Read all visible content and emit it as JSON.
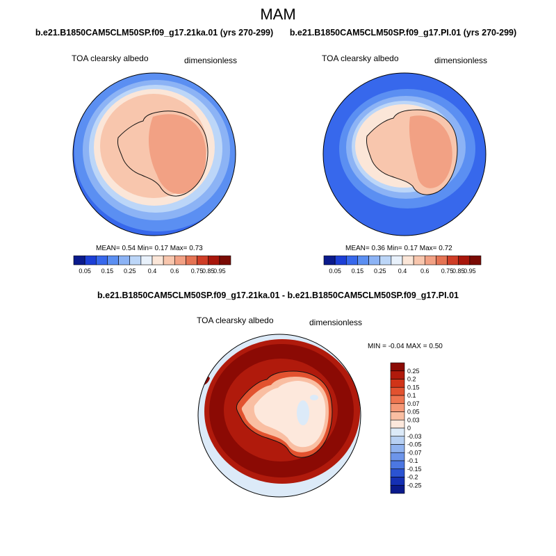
{
  "page": {
    "main_title": "MAM"
  },
  "chart_data": [
    {
      "type": "map",
      "title": "b.e21.B1850CAM5CLM50SP.f09_g17.21ka.01 (yrs 270-299)",
      "left_label": "TOA clearsky albedo",
      "right_label": "dimensionless",
      "stats": {
        "mean_label": "MEAN=",
        "mean": "0.54",
        "min_label": "Min=",
        "min": "0.17",
        "max_label": "Max=",
        "max": "0.73"
      },
      "colorbar": {
        "orientation": "horizontal",
        "tick_labels": [
          "0.05",
          "0.15",
          "0.25",
          "0.4",
          "0.6",
          "0.75",
          "0.85",
          "0.95"
        ],
        "colors": [
          "#0a1a8c",
          "#1c3fd6",
          "#3768ec",
          "#5b8ff2",
          "#8cb3f5",
          "#bcd6f8",
          "#e8f1fb",
          "#fbe6d8",
          "#f8c6ad",
          "#f2a184",
          "#e57353",
          "#cf3d26",
          "#a8160b",
          "#7a0b05"
        ]
      }
    },
    {
      "type": "map",
      "title": "b.e21.B1850CAM5CLM50SP.f09_g17.PI.01 (yrs 270-299)",
      "left_label": "TOA clearsky albedo",
      "right_label": "dimensionless",
      "stats": {
        "mean_label": "MEAN=",
        "mean": "0.36",
        "min_label": "Min=",
        "min": "0.17",
        "max_label": "Max=",
        "max": "0.72"
      },
      "colorbar": {
        "orientation": "horizontal",
        "tick_labels": [
          "0.05",
          "0.15",
          "0.25",
          "0.4",
          "0.6",
          "0.75",
          "0.85",
          "0.95"
        ],
        "colors": [
          "#0a1a8c",
          "#1c3fd6",
          "#3768ec",
          "#5b8ff2",
          "#8cb3f5",
          "#bcd6f8",
          "#e8f1fb",
          "#fbe6d8",
          "#f8c6ad",
          "#f2a184",
          "#e57353",
          "#cf3d26",
          "#a8160b",
          "#7a0b05"
        ]
      }
    },
    {
      "type": "map",
      "title": "b.e21.B1850CAM5CLM50SP.f09_g17.21ka.01 - b.e21.B1850CAM5CLM50SP.f09_g17.PI.01",
      "left_label": "TOA clearsky albedo",
      "right_label": "dimensionless",
      "stats": {
        "text": "MIN =  -0.04 MAX =   0.50"
      },
      "colorbar": {
        "orientation": "vertical",
        "tick_labels": [
          "0.25",
          "0.2",
          "0.15",
          "0.1",
          "0.07",
          "0.05",
          "0.03",
          "0",
          "-0.03",
          "-0.05",
          "-0.07",
          "-0.1",
          "-0.15",
          "-0.2",
          "-0.25"
        ],
        "colors": [
          "#8b0a04",
          "#b01a0c",
          "#d03418",
          "#e2522f",
          "#ef7550",
          "#f59876",
          "#f9bea2",
          "#fde8dc",
          "#dceaf8",
          "#b7d0f3",
          "#8fb2ef",
          "#6d95ea",
          "#4c77e2",
          "#2b53d2",
          "#1530b4",
          "#0a1a8c"
        ]
      }
    }
  ]
}
